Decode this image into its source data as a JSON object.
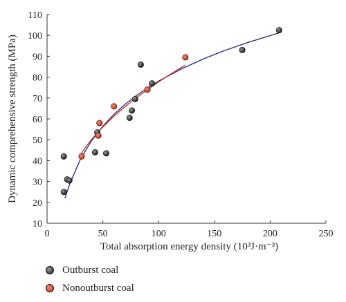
{
  "chart_data": {
    "type": "scatter",
    "title": "",
    "xlabel": "Total absorption energy density (10³J·m⁻³)",
    "ylabel": "Dynamic comprehensive strength (MPa)",
    "xlim": [
      0,
      250
    ],
    "ylim": [
      10,
      110
    ],
    "xticks": [
      0,
      50,
      100,
      150,
      200,
      250
    ],
    "yticks": [
      10,
      20,
      30,
      40,
      50,
      60,
      70,
      80,
      90,
      100,
      110
    ],
    "grid": false,
    "legend_position": "below",
    "series": [
      {
        "name": "Outburst coal",
        "color": "#1a1a1a",
        "points": [
          [
            15,
            42
          ],
          [
            15,
            25
          ],
          [
            18,
            31
          ],
          [
            20,
            30.5
          ],
          [
            43,
            44
          ],
          [
            45,
            53.5
          ],
          [
            53,
            43.5
          ],
          [
            74,
            60.5
          ],
          [
            76,
            64
          ],
          [
            79,
            69.5
          ],
          [
            84,
            86
          ],
          [
            94,
            77
          ],
          [
            175,
            93
          ],
          [
            208,
            102.5
          ]
        ]
      },
      {
        "name": "Nonoutburst coal",
        "color": "#c8321e",
        "points": [
          [
            31,
            42
          ],
          [
            46,
            52
          ],
          [
            47,
            58
          ],
          [
            60,
            66
          ],
          [
            90,
            74
          ],
          [
            124,
            89.5
          ]
        ]
      }
    ],
    "fits": [
      {
        "series": "Outburst coal",
        "color": "#2b2f8f",
        "x": [
          16,
          20,
          30,
          40,
          50,
          60,
          70,
          80,
          90,
          100,
          120,
          140,
          160,
          180,
          200,
          208
        ],
        "y": [
          22,
          28.3,
          40.8,
          49.6,
          56.5,
          62.2,
          67.0,
          71.1,
          74.8,
          78.1,
          83.8,
          88.7,
          92.9,
          96.6,
          99.9,
          101.2
        ]
      },
      {
        "series": "Nonoutburst coal",
        "color": "#c8321e",
        "x": [
          29,
          35,
          40,
          50,
          60,
          70,
          80,
          90,
          100,
          110,
          124
        ],
        "y": [
          42,
          46.8,
          50.2,
          56.1,
          61.3,
          65.9,
          70.1,
          74.0,
          77.7,
          81.2,
          85.8
        ]
      }
    ]
  }
}
